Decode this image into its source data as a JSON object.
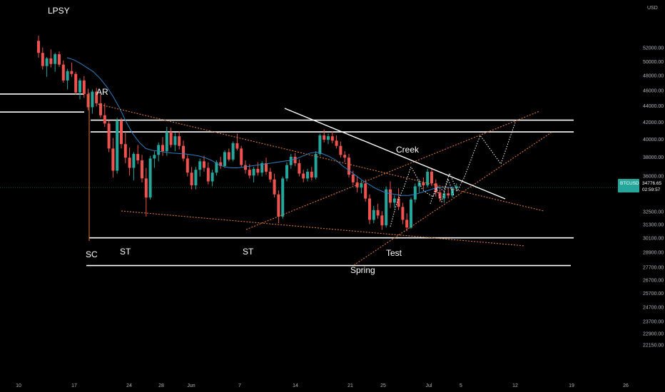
{
  "chart_data": {
    "type": "candlestick",
    "symbol": "BTCUSD",
    "currency": "USD",
    "last_price": "34776.65",
    "countdown": "02:59:57",
    "colors": {
      "background": "#000000",
      "up": "#26a69a",
      "down": "#ef5350",
      "ma": "#2e7fc0",
      "level": "#ffffff",
      "dotted_orange": "#d9793a",
      "price_tag": "#26a69a"
    },
    "y_axis": {
      "ticks": [
        "52000.00",
        "50000.00",
        "48000.00",
        "46000.00",
        "44000.00",
        "42000.00",
        "40000.00",
        "38000.00",
        "36000.00",
        "34776.65",
        "32500.00",
        "31300.00",
        "30100.00",
        "28900.00",
        "27700.00",
        "26700.00",
        "25700.00",
        "24700.00",
        "23700.00",
        "22900.00",
        "22150.00"
      ],
      "log_scale": true,
      "range": [
        21800,
        54000
      ]
    },
    "x_axis": {
      "ticks": [
        "10",
        "17",
        "24",
        "28",
        "Jun",
        "7",
        "14",
        "21",
        "25",
        "Jul",
        "5",
        "12",
        "19",
        "26"
      ]
    },
    "annotations": [
      "LPSY",
      "AR",
      "SC",
      "ST",
      "ST",
      "Spring",
      "Test",
      "Creek"
    ],
    "horizontal_levels": [
      45500,
      43200,
      42200,
      40800,
      30100,
      27800
    ],
    "candles": [
      [
        53000,
        53800,
        50500,
        51200
      ],
      [
        51200,
        52000,
        48800,
        49300
      ],
      [
        49300,
        50600,
        47800,
        50400
      ],
      [
        50400,
        51700,
        49100,
        49600
      ],
      [
        49600,
        51200,
        48500,
        51000
      ],
      [
        51000,
        51400,
        49200,
        49500
      ],
      [
        49500,
        50100,
        47000,
        47300
      ],
      [
        47300,
        48900,
        46100,
        48600
      ],
      [
        48600,
        49800,
        47800,
        48200
      ],
      [
        48200,
        48500,
        45400,
        45700
      ],
      [
        45700,
        47600,
        44800,
        47300
      ],
      [
        47300,
        47900,
        45000,
        45500
      ],
      [
        45500,
        46200,
        43400,
        43800
      ],
      [
        43800,
        46100,
        43000,
        45800
      ],
      [
        45800,
        46300,
        43900,
        44300
      ],
      [
        44300,
        45400,
        42500,
        42800
      ],
      [
        42800,
        44300,
        41400,
        41800
      ],
      [
        41800,
        42200,
        38500,
        38900
      ],
      [
        38900,
        40100,
        35800,
        36500
      ],
      [
        36500,
        42500,
        36200,
        42100
      ],
      [
        42100,
        42500,
        38900,
        39400
      ],
      [
        39400,
        40800,
        37300,
        37900
      ],
      [
        37900,
        39000,
        36000,
        36800
      ],
      [
        36800,
        38500,
        35500,
        38300
      ],
      [
        38300,
        39300,
        37200,
        37600
      ],
      [
        37600,
        38200,
        35300,
        35700
      ],
      [
        35700,
        36800,
        32000,
        33800
      ],
      [
        33800,
        38100,
        33600,
        37800
      ],
      [
        37800,
        38600,
        36800,
        38200
      ],
      [
        38200,
        39600,
        37500,
        39300
      ],
      [
        39300,
        40200,
        38100,
        38600
      ],
      [
        38600,
        41400,
        38100,
        40800
      ],
      [
        40800,
        41300,
        39000,
        39300
      ],
      [
        39300,
        40700,
        38600,
        40300
      ],
      [
        40300,
        40900,
        38800,
        39200
      ],
      [
        39200,
        39800,
        37500,
        37800
      ],
      [
        37800,
        38200,
        35900,
        36300
      ],
      [
        36300,
        36900,
        34600,
        35000
      ],
      [
        35000,
        36900,
        34600,
        36600
      ],
      [
        36600,
        37800,
        35900,
        37500
      ],
      [
        37500,
        38100,
        36400,
        36800
      ],
      [
        36800,
        37400,
        35100,
        35400
      ],
      [
        35400,
        36600,
        34900,
        36300
      ],
      [
        36300,
        37600,
        36000,
        37400
      ],
      [
        37400,
        38000,
        36700,
        37000
      ],
      [
        37000,
        38700,
        36800,
        38500
      ],
      [
        38500,
        38900,
        37500,
        37700
      ],
      [
        37700,
        39700,
        37500,
        39500
      ],
      [
        39500,
        40600,
        38700,
        38900
      ],
      [
        38900,
        39200,
        36900,
        37100
      ],
      [
        37100,
        37600,
        36200,
        36600
      ],
      [
        36600,
        37200,
        35700,
        36000
      ],
      [
        36000,
        36900,
        35300,
        36700
      ],
      [
        36700,
        37400,
        36000,
        36300
      ],
      [
        36300,
        37500,
        35900,
        37300
      ],
      [
        37300,
        37900,
        36100,
        36400
      ],
      [
        36400,
        36800,
        35300,
        35600
      ],
      [
        35600,
        36200,
        33800,
        34100
      ],
      [
        34100,
        34500,
        31400,
        32000
      ],
      [
        32000,
        35900,
        31800,
        35700
      ],
      [
        35700,
        37400,
        35400,
        37100
      ],
      [
        37100,
        38300,
        36700,
        38000
      ],
      [
        38000,
        38400,
        37000,
        37300
      ],
      [
        37300,
        37700,
        35900,
        36200
      ],
      [
        36200,
        36600,
        35300,
        35700
      ],
      [
        35700,
        36700,
        35400,
        36400
      ],
      [
        36400,
        36900,
        35500,
        35800
      ],
      [
        35800,
        38600,
        35600,
        38300
      ],
      [
        38300,
        40600,
        38100,
        40400
      ],
      [
        40400,
        41100,
        39600,
        39900
      ],
      [
        39900,
        40600,
        39400,
        40300
      ],
      [
        40300,
        40900,
        39500,
        39800
      ],
      [
        39800,
        40400,
        38900,
        39200
      ],
      [
        39200,
        39700,
        37900,
        38200
      ],
      [
        38200,
        38600,
        37400,
        37900
      ],
      [
        37900,
        38300,
        35800,
        36100
      ],
      [
        36100,
        36500,
        35000,
        35300
      ],
      [
        35300,
        35900,
        34300,
        34800
      ],
      [
        34800,
        35500,
        34200,
        35200
      ],
      [
        35200,
        35600,
        33400,
        33700
      ],
      [
        33700,
        34100,
        31300,
        31700
      ],
      [
        31700,
        33000,
        31400,
        32600
      ],
      [
        32600,
        33200,
        31800,
        32100
      ],
      [
        32100,
        32500,
        30800,
        31200
      ],
      [
        31200,
        34900,
        31000,
        34600
      ],
      [
        34600,
        35400,
        32800,
        33300
      ],
      [
        33300,
        34000,
        32800,
        33700
      ],
      [
        33700,
        34700,
        32600,
        32900
      ],
      [
        32900,
        33300,
        31300,
        31700
      ],
      [
        31700,
        32300,
        30700,
        31000
      ],
      [
        31000,
        33800,
        30900,
        33600
      ],
      [
        33600,
        35200,
        33300,
        34900
      ],
      [
        34900,
        35600,
        34300,
        35300
      ],
      [
        35300,
        35800,
        34600,
        35000
      ],
      [
        35000,
        36700,
        34800,
        36400
      ],
      [
        36400,
        36800,
        34900,
        35200
      ],
      [
        35200,
        35600,
        33900,
        34300
      ],
      [
        34300,
        34600,
        33400,
        33700
      ],
      [
        33700,
        34400,
        33300,
        34200
      ],
      [
        34200,
        34800,
        33700,
        34000
      ],
      [
        34000,
        34900,
        33800,
        34700
      ],
      [
        34700,
        35200,
        34400,
        34900
      ]
    ],
    "ma": [
      50500,
      50200,
      49700,
      49100,
      48500,
      47600,
      46500,
      45200,
      43700,
      42000,
      40600,
      39600,
      38900,
      38700,
      38600,
      38500,
      38400,
      38350,
      38300,
      38200,
      38100,
      37900,
      37600,
      37200,
      36900,
      36800,
      36800,
      36900,
      37000,
      37100,
      37200,
      37300,
      37400,
      37500,
      37600,
      37800,
      38100,
      38400,
      38500,
      38300,
      38000,
      37600,
      37000,
      36500,
      36000,
      35500,
      35100,
      34700,
      34400,
      34200,
      34100,
      34000,
      34000,
      34100,
      34300,
      34500,
      34700,
      34800,
      34800,
      34750
    ]
  }
}
